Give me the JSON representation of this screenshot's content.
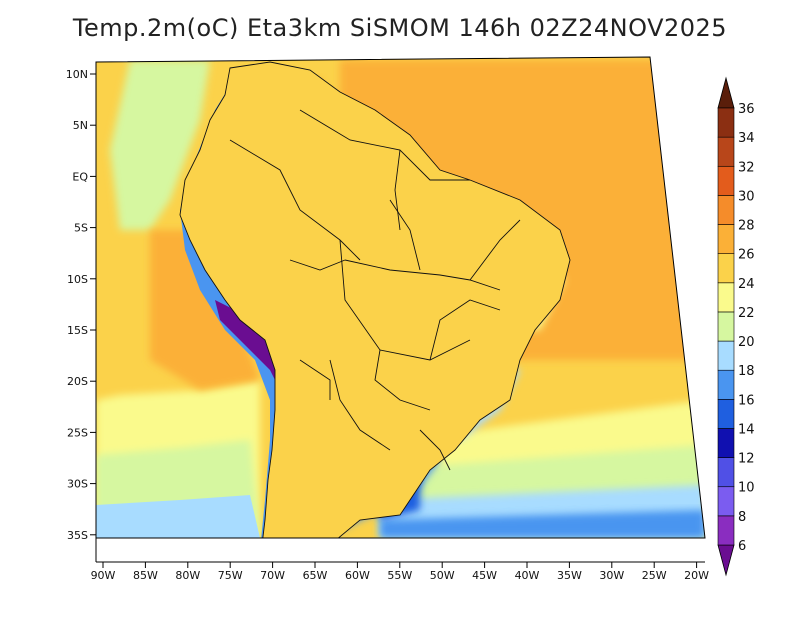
{
  "title": "Temp.2m(oC) Eta3km SiSMOM 146h 02Z24NOV2025",
  "lat_labels": [
    "10N",
    "5N",
    "EQ",
    "5S",
    "10S",
    "15S",
    "20S",
    "25S",
    "30S",
    "35S"
  ],
  "lon_labels": [
    "90W",
    "85W",
    "80W",
    "75W",
    "70W",
    "65W",
    "60W",
    "55W",
    "50W",
    "45W",
    "40W",
    "35W",
    "30W",
    "25W",
    "20W"
  ],
  "colorbar": {
    "values": [
      "6",
      "8",
      "10",
      "12",
      "14",
      "16",
      "18",
      "20",
      "22",
      "24",
      "26",
      "28",
      "30",
      "32",
      "34",
      "36"
    ],
    "colors": [
      "#6a0d91",
      "#8a2dc0",
      "#7b5cf0",
      "#5050e6",
      "#1010b0",
      "#1f5fe0",
      "#4a95f0",
      "#a8dcff",
      "#d6f7a0",
      "#fafa8c",
      "#fbd24a",
      "#fbb037",
      "#f58c2a",
      "#e35c1c",
      "#b8461a",
      "#8b2f12",
      "#5a1e0a"
    ]
  },
  "chart_data": {
    "type": "heatmap",
    "variable": "Temp.2m(oC)",
    "units": "oC",
    "model": "Eta3km SiSMOM",
    "forecast_hour": "146h",
    "valid_time": "02Z24NOV2025",
    "lon_range": [
      -90,
      -20
    ],
    "lat_range": [
      -37,
      11
    ],
    "color_levels": [
      6,
      8,
      10,
      12,
      14,
      16,
      18,
      20,
      22,
      24,
      26,
      28,
      30,
      32,
      34,
      36
    ]
  }
}
